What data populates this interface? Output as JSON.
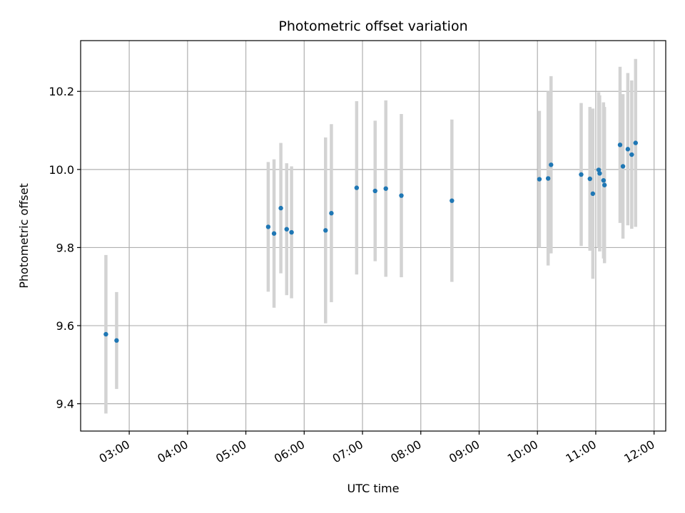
{
  "chart_data": {
    "type": "scatter",
    "title": "Photometric offset variation",
    "xlabel": "UTC time",
    "ylabel": "Photometric offset",
    "xlim": [
      "02:10",
      "12:12"
    ],
    "ylim": [
      9.33,
      10.33
    ],
    "grid": true,
    "x_ticks": [
      "03:00",
      "04:00",
      "05:00",
      "06:00",
      "07:00",
      "08:00",
      "09:00",
      "10:00",
      "11:00",
      "12:00"
    ],
    "y_ticks": [
      "9.4",
      "9.6",
      "9.8",
      "10.0",
      "10.2"
    ],
    "colors": {
      "point": "#1f77b4",
      "errorbar": "#d3d3d3",
      "grid": "#b0b0b0"
    },
    "series": [
      {
        "points": [
          {
            "x": "02:36",
            "y": 9.578,
            "err": 0.203
          },
          {
            "x": "02:47",
            "y": 9.562,
            "err": 0.124
          },
          {
            "x": "05:23",
            "y": 9.853,
            "err": 0.166
          },
          {
            "x": "05:29",
            "y": 9.836,
            "err": 0.19
          },
          {
            "x": "05:36",
            "y": 9.901,
            "err": 0.167
          },
          {
            "x": "05:42",
            "y": 9.847,
            "err": 0.169
          },
          {
            "x": "05:47",
            "y": 9.839,
            "err": 0.169
          },
          {
            "x": "06:22",
            "y": 9.844,
            "err": 0.238
          },
          {
            "x": "06:28",
            "y": 9.888,
            "err": 0.228
          },
          {
            "x": "06:54",
            "y": 9.953,
            "err": 0.222
          },
          {
            "x": "07:13",
            "y": 9.945,
            "err": 0.18
          },
          {
            "x": "07:24",
            "y": 9.951,
            "err": 0.226
          },
          {
            "x": "07:40",
            "y": 9.933,
            "err": 0.209
          },
          {
            "x": "08:32",
            "y": 9.92,
            "err": 0.208
          },
          {
            "x": "10:02",
            "y": 9.975,
            "err": 0.175
          },
          {
            "x": "10:11",
            "y": 9.977,
            "err": 0.223
          },
          {
            "x": "10:14",
            "y": 10.012,
            "err": 0.227
          },
          {
            "x": "10:45",
            "y": 9.987,
            "err": 0.183
          },
          {
            "x": "10:54",
            "y": 9.976,
            "err": 0.184
          },
          {
            "x": "10:57",
            "y": 9.938,
            "err": 0.218
          },
          {
            "x": "11:03",
            "y": 9.999,
            "err": 0.199
          },
          {
            "x": "11:04",
            "y": 9.99,
            "err": 0.2
          },
          {
            "x": "11:08",
            "y": 9.972,
            "err": 0.2
          },
          {
            "x": "11:09",
            "y": 9.96,
            "err": 0.2
          },
          {
            "x": "11:25",
            "y": 10.063,
            "err": 0.2
          },
          {
            "x": "11:28",
            "y": 10.008,
            "err": 0.185
          },
          {
            "x": "11:33",
            "y": 10.052,
            "err": 0.195
          },
          {
            "x": "11:37",
            "y": 10.038,
            "err": 0.19
          },
          {
            "x": "11:41",
            "y": 10.068,
            "err": 0.215
          }
        ]
      }
    ]
  }
}
